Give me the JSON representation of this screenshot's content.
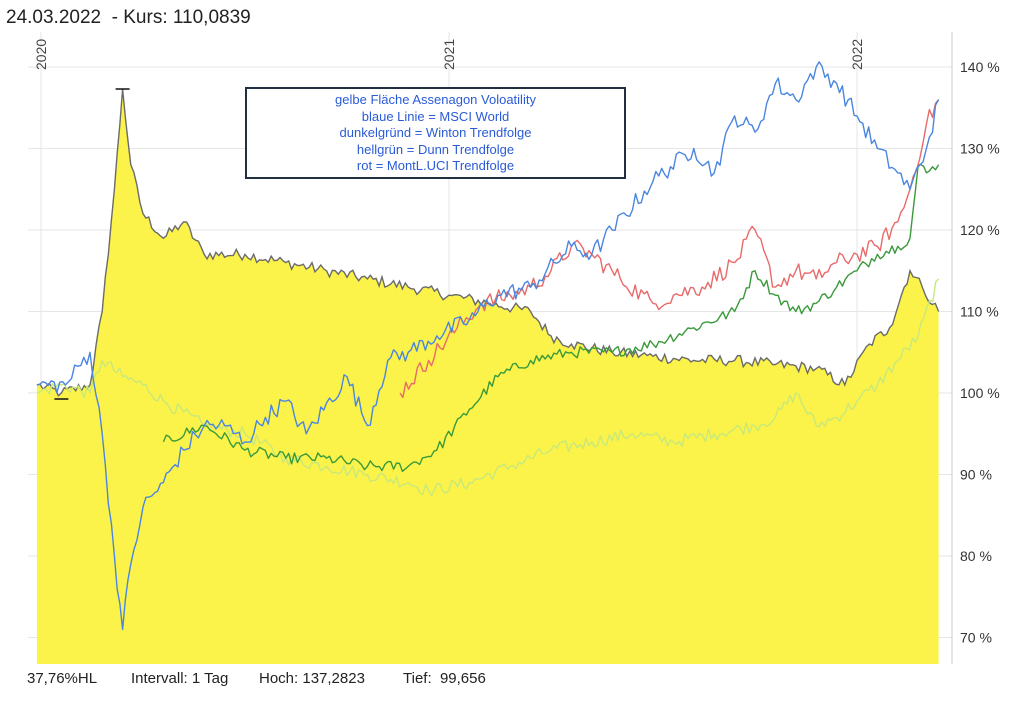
{
  "header": {
    "title": "24.03.2022  - Kurs: 110,0839"
  },
  "footer": {
    "hl": "37,76%HL",
    "interval": "Intervall: 1 Tag",
    "high": "Hoch: 137,2823",
    "low": "Tief:  99,656"
  },
  "legend": {
    "lines": [
      "gelbe Fläche Assenagon Voloatility",
      "blaue Linie = MSCI World",
      "dunkelgründ = Winton Trendfolge",
      "hellgrün = Dunn Trendfolge",
      "rot = MontL.UCI Trendfolge"
    ]
  },
  "colors": {
    "yellow_area": "#fbf34a",
    "yellow_line": "#6b6b6b",
    "msci_blue": "#4a86e0",
    "winton_darkgreen": "#3a9a3a",
    "dunn_lightgreen": "#c8e87a",
    "montl_red": "#e86a6a",
    "grid": "#e6e6e6"
  },
  "chart_data": {
    "type": "line",
    "title": "",
    "xlabel": "",
    "ylabel": "",
    "x_range": [
      2019.99,
      2022.23
    ],
    "ylim": [
      67,
      145
    ],
    "y_ticks": [
      70,
      80,
      90,
      100,
      110,
      120,
      130,
      140
    ],
    "y_tick_labels": [
      "70 %",
      "80 %",
      "90 %",
      "100 %",
      "110 %",
      "120 %",
      "130 %",
      "140 %"
    ],
    "x_ticks": [
      2020,
      2021,
      2022
    ],
    "x_tick_labels": [
      "2020",
      "2021",
      "2022"
    ],
    "grid": true,
    "series": [
      {
        "name": "Assenagon Voloatility",
        "key": "assenagon",
        "style": "area",
        "x": [
          2019.99,
          2020.05,
          2020.12,
          2020.15,
          2020.18,
          2020.2,
          2020.22,
          2020.25,
          2020.3,
          2020.35,
          2020.4,
          2020.5,
          2020.6,
          2020.7,
          2020.8,
          2020.9,
          2021.0,
          2021.1,
          2021.2,
          2021.25,
          2021.3,
          2021.4,
          2021.5,
          2021.6,
          2021.7,
          2021.8,
          2021.9,
          2021.97,
          2022.03,
          2022.08,
          2022.13,
          2022.16,
          2022.2
        ],
        "values": [
          101,
          100,
          101,
          110,
          125,
          137.3,
          128,
          122,
          119,
          121,
          117,
          117,
          116,
          115,
          114,
          113,
          112,
          111,
          110,
          107,
          106,
          105,
          104.5,
          104,
          104,
          103.5,
          103,
          101,
          106,
          108,
          115,
          113,
          110
        ]
      },
      {
        "name": "MSCI World",
        "key": "msci",
        "style": "line",
        "x": [
          2019.99,
          2020.06,
          2020.12,
          2020.15,
          2020.18,
          2020.2,
          2020.22,
          2020.25,
          2020.3,
          2020.35,
          2020.4,
          2020.45,
          2020.5,
          2020.55,
          2020.6,
          2020.65,
          2020.75,
          2020.8,
          2020.85,
          2020.9,
          2020.97,
          2021.05,
          2021.12,
          2021.2,
          2021.3,
          2021.35,
          2021.4,
          2021.5,
          2021.6,
          2021.65,
          2021.7,
          2021.75,
          2021.8,
          2021.85,
          2021.9,
          2021.95,
          2022.0,
          2022.05,
          2022.1,
          2022.13,
          2022.17,
          2022.2
        ],
        "values": [
          101,
          101,
          105,
          95,
          80,
          71,
          79,
          86,
          89,
          93,
          96,
          96,
          94,
          97,
          99,
          95,
          102,
          96,
          104,
          105,
          107,
          109,
          112,
          113,
          118,
          117,
          120,
          126,
          130,
          127,
          134,
          132,
          138,
          136,
          140,
          138,
          134,
          130,
          127,
          125,
          130,
          136
        ]
      },
      {
        "name": "MontL.UCI Trendfolge",
        "key": "montl",
        "style": "line",
        "x": [
          2020.88,
          2020.95,
          2021.02,
          2021.08,
          2021.15,
          2021.2,
          2021.25,
          2021.3,
          2021.35,
          2021.42,
          2021.5,
          2021.55,
          2021.62,
          2021.7,
          2021.75,
          2021.8,
          2021.85,
          2021.9,
          2021.95,
          2022.0,
          2022.05,
          2022.1,
          2022.13,
          2022.17,
          2022.2
        ],
        "values": [
          100,
          104,
          108,
          111,
          112,
          113,
          115,
          118,
          117,
          114,
          111,
          112,
          113,
          116,
          120,
          113,
          115,
          114,
          116,
          117,
          118,
          121,
          125,
          133,
          136
        ]
      },
      {
        "name": "Winton Trendfolge",
        "key": "winton",
        "style": "line",
        "x": [
          2020.3,
          2020.4,
          2020.5,
          2020.6,
          2020.7,
          2020.8,
          2020.9,
          2020.97,
          2021.05,
          2021.12,
          2021.2,
          2021.3,
          2021.4,
          2021.5,
          2021.6,
          2021.7,
          2021.75,
          2021.8,
          2021.85,
          2021.9,
          2021.95,
          2022.0,
          2022.05,
          2022.1,
          2022.13,
          2022.15,
          2022.17,
          2022.2
        ],
        "values": [
          94,
          96,
          93,
          92,
          92,
          91,
          91,
          93,
          98,
          102,
          104,
          105,
          105,
          106,
          108,
          110,
          115,
          112,
          110,
          111,
          113,
          115,
          117,
          118,
          119,
          128,
          127,
          128
        ]
      },
      {
        "name": "Dunn Trendfolge",
        "key": "dunn",
        "style": "line",
        "x": [
          2019.99,
          2020.05,
          2020.12,
          2020.15,
          2020.2,
          2020.25,
          2020.3,
          2020.4,
          2020.5,
          2020.6,
          2020.7,
          2020.8,
          2020.9,
          2020.95,
          2021.05,
          2021.15,
          2021.25,
          2021.35,
          2021.45,
          2021.55,
          2021.65,
          2021.75,
          2021.8,
          2021.85,
          2021.9,
          2021.95,
          2022.0,
          2022.05,
          2022.1,
          2022.15,
          2022.2
        ],
        "values": [
          100,
          101,
          100,
          104,
          102,
          101,
          99,
          96,
          95,
          92,
          91,
          90,
          89,
          88,
          89,
          91,
          93,
          94,
          95,
          94,
          95,
          96,
          97,
          100,
          96,
          97,
          99,
          101,
          104,
          107,
          114
        ]
      }
    ]
  }
}
